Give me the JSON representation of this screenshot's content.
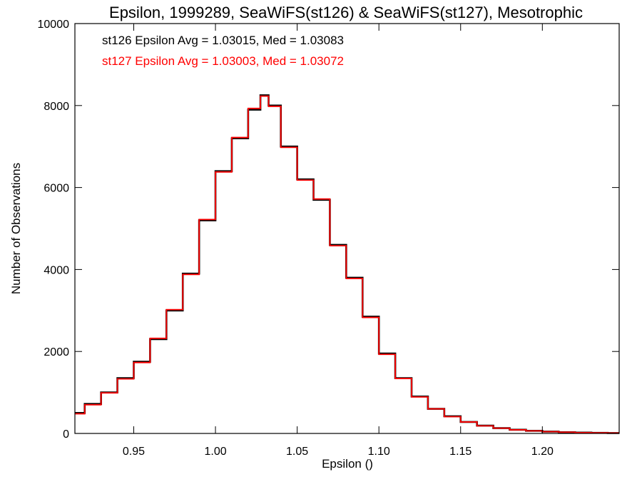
{
  "chart_data": {
    "type": "line",
    "title": "Epsilon, 1999289, SeaWiFS(st126) & SeaWiFS(st127), Mesotrophic",
    "xlabel": "Epsilon ()",
    "ylabel": "Number of Observations",
    "xlim": [
      0.914,
      1.247
    ],
    "ylim": [
      0,
      10000
    ],
    "x_ticks": [
      0.95,
      1.0,
      1.05,
      1.1,
      1.15,
      1.2
    ],
    "x_tick_labels": [
      "0.95",
      "1.00",
      "1.05",
      "1.10",
      "1.15",
      "1.20"
    ],
    "y_ticks": [
      0,
      2000,
      4000,
      6000,
      8000,
      10000
    ],
    "y_tick_labels": [
      "0",
      "2000",
      "4000",
      "6000",
      "8000",
      "10000"
    ],
    "grid": false,
    "step": true,
    "x": [
      0.915,
      0.925,
      0.935,
      0.945,
      0.955,
      0.965,
      0.975,
      0.985,
      0.995,
      1.005,
      1.015,
      1.025,
      1.03,
      1.035,
      1.045,
      1.055,
      1.065,
      1.075,
      1.085,
      1.095,
      1.105,
      1.115,
      1.125,
      1.135,
      1.145,
      1.155,
      1.165,
      1.175,
      1.185,
      1.195,
      1.205,
      1.215,
      1.225,
      1.235,
      1.245
    ],
    "series": [
      {
        "name": "st126",
        "color": "#000000",
        "values": [
          500,
          720,
          1000,
          1350,
          1750,
          2300,
          3000,
          3900,
          5200,
          6400,
          7200,
          7900,
          8250,
          8000,
          7000,
          6200,
          5700,
          4600,
          3800,
          2850,
          1950,
          1350,
          900,
          600,
          420,
          280,
          190,
          130,
          90,
          65,
          45,
          30,
          20,
          15,
          10
        ]
      },
      {
        "name": "st127",
        "color": "#ff0000",
        "values": [
          480,
          700,
          990,
          1330,
          1730,
          2320,
          3020,
          3880,
          5220,
          6380,
          7220,
          7930,
          8230,
          7980,
          6980,
          6180,
          5720,
          4580,
          3780,
          2830,
          1930,
          1340,
          890,
          600,
          410,
          280,
          185,
          128,
          88,
          63,
          44,
          30,
          20,
          14,
          10
        ]
      }
    ],
    "annotations": [
      {
        "text": "st126 Epsilon Avg = 1.03015, Med = 1.03083",
        "color": "#000000"
      },
      {
        "text": "st127 Epsilon Avg = 1.03003, Med = 1.03072",
        "color": "#ff0000"
      }
    ]
  }
}
